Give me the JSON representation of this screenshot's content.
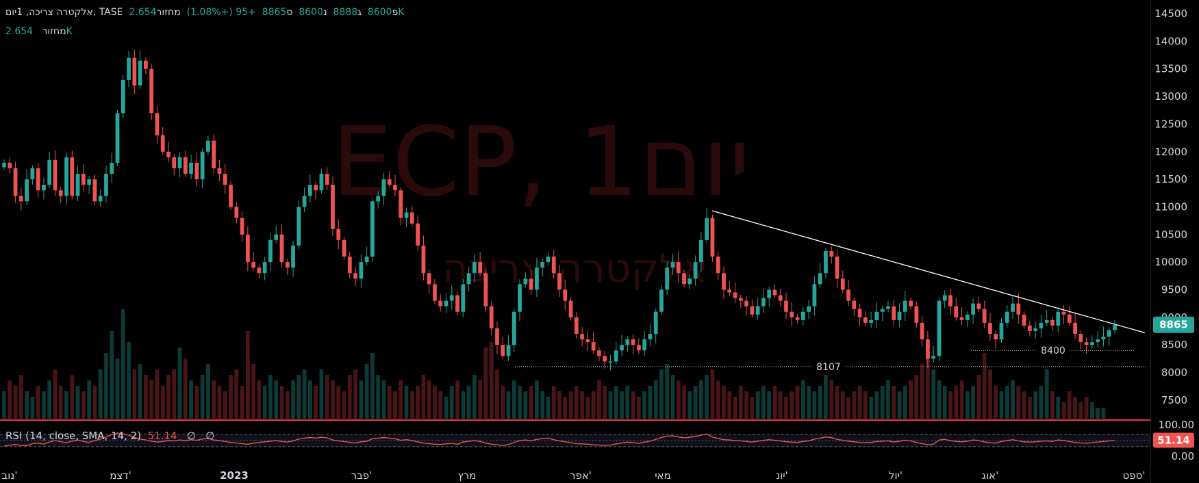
{
  "legend": {
    "volume_label_rtl": "מחזור",
    "volume_value": "2.654K",
    "change": "+95 (+1.08%)",
    "close_prefix": "ס",
    "close": "8865",
    "low_prefix": "נ",
    "low": "8600",
    "high_prefix": "ג",
    "high": "8888",
    "open_prefix": "פ",
    "open": "8600",
    "symbol": "אלקטרה צריכה, 1יום, TASE"
  },
  "legend2": {
    "label": "מחזור",
    "value": "2.654K"
  },
  "watermark": {
    "line1": "ECP, 1יום",
    "line2": "אלקטרה צריכה"
  },
  "rsi": {
    "title": "RSI (14, close, SMA, 14, 2)",
    "value": "51.14",
    "na1": "∅",
    "na2": "∅",
    "axis_top": "100.00",
    "axis_bottom": "0.00"
  },
  "price_badge": "8865",
  "colors": {
    "up": "#26a69a",
    "down": "#ef5350",
    "trendline": "#ffffff",
    "bg": "#000000"
  },
  "chart_data": {
    "type": "candlestick",
    "y_ticks": [
      14500,
      14000,
      13500,
      13000,
      12500,
      12000,
      11500,
      11000,
      10500,
      10000,
      9500,
      9000,
      8500,
      8000,
      7500
    ],
    "ylim": [
      7250,
      14600
    ],
    "x_labels": [
      "נוב'",
      "דצמ'",
      "2023",
      "פבר'",
      "מרץ",
      "אפר'",
      "מאי",
      "יונ'",
      "יול'",
      "אוג'",
      "ספט'"
    ],
    "levels": [
      {
        "label": "8107",
        "value": 8107
      },
      {
        "label": "8400",
        "value": 8400
      }
    ],
    "trendline": [
      [
        0,
        10930
      ],
      [
        1,
        8720
      ]
    ],
    "last_close": 8865,
    "closes": [
      11800,
      11700,
      11200,
      11100,
      11500,
      11700,
      11300,
      11400,
      11850,
      11300,
      11200,
      11900,
      11200,
      11600,
      11400,
      11500,
      11100,
      11200,
      11600,
      11800,
      12700,
      13300,
      13700,
      13200,
      13650,
      13500,
      12700,
      12300,
      12000,
      11900,
      11700,
      11900,
      11600,
      11800,
      11500,
      12000,
      12200,
      11700,
      11600,
      11400,
      11000,
      10800,
      10500,
      10000,
      9900,
      9800,
      10000,
      10400,
      10500,
      10000,
      9900,
      10300,
      11000,
      11200,
      11400,
      11300,
      11600,
      11400,
      10600,
      10400,
      10100,
      9800,
      9700,
      10000,
      10100,
      11100,
      11200,
      11500,
      11400,
      11300,
      10800,
      10900,
      10700,
      10300,
      9800,
      9600,
      9300,
      9200,
      9300,
      9400,
      9100,
      9600,
      9800,
      10000,
      9800,
      9200,
      8800,
      8500,
      8300,
      8500,
      9100,
      9600,
      9700,
      9500,
      9900,
      10000,
      10100,
      9800,
      9500,
      9300,
      9000,
      8700,
      8600,
      8550,
      8400,
      8300,
      8200,
      8200,
      8400,
      8500,
      8600,
      8500,
      8400,
      8600,
      8700,
      9100,
      9500,
      9900,
      10000,
      9800,
      9600,
      9700,
      10000,
      10400,
      10800,
      10100,
      9800,
      9500,
      9450,
      9350,
      9300,
      9200,
      9050,
      9200,
      9350,
      9500,
      9400,
      9300,
      9100,
      9000,
      8950,
      9100,
      9200,
      9600,
      9800,
      10200,
      10100,
      9700,
      9500,
      9300,
      9150,
      9000,
      8900,
      8950,
      9100,
      9150,
      9200,
      8950,
      9100,
      9300,
      9200,
      8900,
      8600,
      8250,
      8300,
      9300,
      9400,
      9200,
      9000,
      8950,
      9050,
      9250,
      9150,
      8900,
      8700,
      8600,
      8900,
      9100,
      9250,
      9050,
      8850,
      8750,
      8800,
      8900,
      8950,
      8850,
      9100,
      9050,
      8900,
      8700,
      8550,
      8500,
      8550,
      8600,
      8650,
      8770,
      8865
    ],
    "volumes": [
      0.5,
      0.7,
      0.6,
      0.8,
      0.5,
      0.4,
      0.6,
      0.5,
      0.7,
      0.9,
      0.6,
      0.5,
      0.8,
      0.6,
      0.5,
      0.7,
      0.6,
      0.9,
      1.2,
      1.6,
      1.1,
      2.0,
      1.4,
      0.9,
      1.0,
      0.8,
      0.7,
      0.9,
      0.6,
      0.8,
      0.9,
      1.3,
      1.1,
      0.7,
      0.6,
      0.8,
      1.0,
      0.7,
      0.6,
      0.5,
      0.8,
      0.9,
      0.6,
      1.6,
      1.0,
      0.7,
      0.6,
      0.8,
      0.7,
      0.6,
      0.5,
      0.7,
      0.8,
      0.9,
      0.7,
      0.6,
      0.9,
      0.8,
      0.7,
      0.6,
      0.5,
      0.8,
      0.9,
      0.7,
      1.0,
      1.2,
      0.8,
      0.7,
      0.6,
      0.5,
      0.7,
      0.6,
      0.5,
      0.6,
      0.8,
      0.7,
      0.6,
      0.5,
      0.4,
      0.6,
      0.7,
      0.5,
      0.6,
      0.8,
      0.7,
      1.3,
      1.4,
      0.9,
      0.6,
      0.5,
      0.7,
      0.6,
      0.5,
      0.6,
      0.7,
      0.5,
      0.4,
      0.6,
      0.5,
      0.4,
      0.5,
      0.6,
      0.5,
      0.4,
      0.5,
      0.7,
      0.6,
      0.5,
      0.6,
      0.5,
      0.6,
      0.5,
      0.4,
      0.5,
      0.6,
      0.7,
      0.9,
      1.0,
      0.8,
      0.7,
      0.6,
      0.5,
      0.6,
      0.7,
      0.8,
      0.9,
      0.7,
      0.6,
      0.5,
      0.4,
      0.6,
      0.5,
      0.4,
      0.5,
      0.6,
      0.5,
      0.6,
      0.5,
      0.4,
      0.5,
      0.6,
      0.7,
      0.6,
      0.5,
      0.6,
      0.8,
      0.7,
      0.6,
      0.5,
      0.4,
      0.5,
      0.6,
      0.5,
      0.4,
      0.5,
      0.6,
      0.7,
      0.6,
      0.5,
      0.6,
      0.7,
      0.8,
      1.0,
      1.2,
      0.9,
      0.7,
      0.6,
      0.5,
      0.6,
      0.7,
      0.5,
      0.6,
      0.8,
      1.2,
      0.9,
      0.6,
      0.5,
      0.6,
      0.7,
      0.6,
      0.5,
      0.4,
      0.5,
      0.6,
      0.9,
      0.5,
      0.4,
      0.3,
      0.5,
      0.4,
      0.3,
      0.4,
      0.3,
      0.2,
      0.2
    ],
    "rsi_values": [
      32,
      35,
      37,
      34,
      33,
      40,
      42,
      38,
      45,
      50,
      46,
      43,
      48,
      52,
      47,
      44,
      50,
      55,
      62,
      70,
      75,
      72,
      68,
      60,
      55,
      52,
      48,
      45,
      47,
      50,
      49,
      52,
      50,
      53,
      51,
      55,
      57,
      52,
      50,
      47,
      44,
      42,
      40,
      38,
      41,
      44,
      46,
      48,
      50,
      47,
      45,
      49,
      55,
      58,
      60,
      58,
      61,
      59,
      52,
      49,
      47,
      44,
      42,
      46,
      48,
      56,
      58,
      60,
      58,
      56,
      51,
      53,
      50,
      46,
      42,
      40,
      38,
      37,
      39,
      41,
      38,
      45,
      48,
      50,
      47,
      42,
      38,
      36,
      34,
      37,
      44,
      50,
      52,
      49,
      54,
      56,
      58,
      53,
      49,
      46,
      43,
      40,
      39,
      38,
      36,
      35,
      34,
      35,
      39,
      42,
      45,
      43,
      41,
      45,
      48,
      54,
      60,
      65,
      66,
      62,
      59,
      61,
      64,
      68,
      72,
      62,
      57,
      53,
      52,
      50,
      49,
      47,
      45,
      48,
      51,
      53,
      51,
      49,
      46,
      45,
      44,
      47,
      49,
      55,
      58,
      62,
      60,
      54,
      51,
      48,
      46,
      44,
      43,
      44,
      47,
      48,
      49,
      45,
      48,
      51,
      49,
      44,
      40,
      36,
      38,
      52,
      54,
      50,
      47,
      46,
      48,
      52,
      50,
      46,
      43,
      42,
      47,
      50,
      53,
      49,
      46,
      45,
      46,
      48,
      49,
      47,
      52,
      50,
      47,
      44,
      42,
      41,
      43,
      45,
      47,
      49,
      51
    ]
  }
}
